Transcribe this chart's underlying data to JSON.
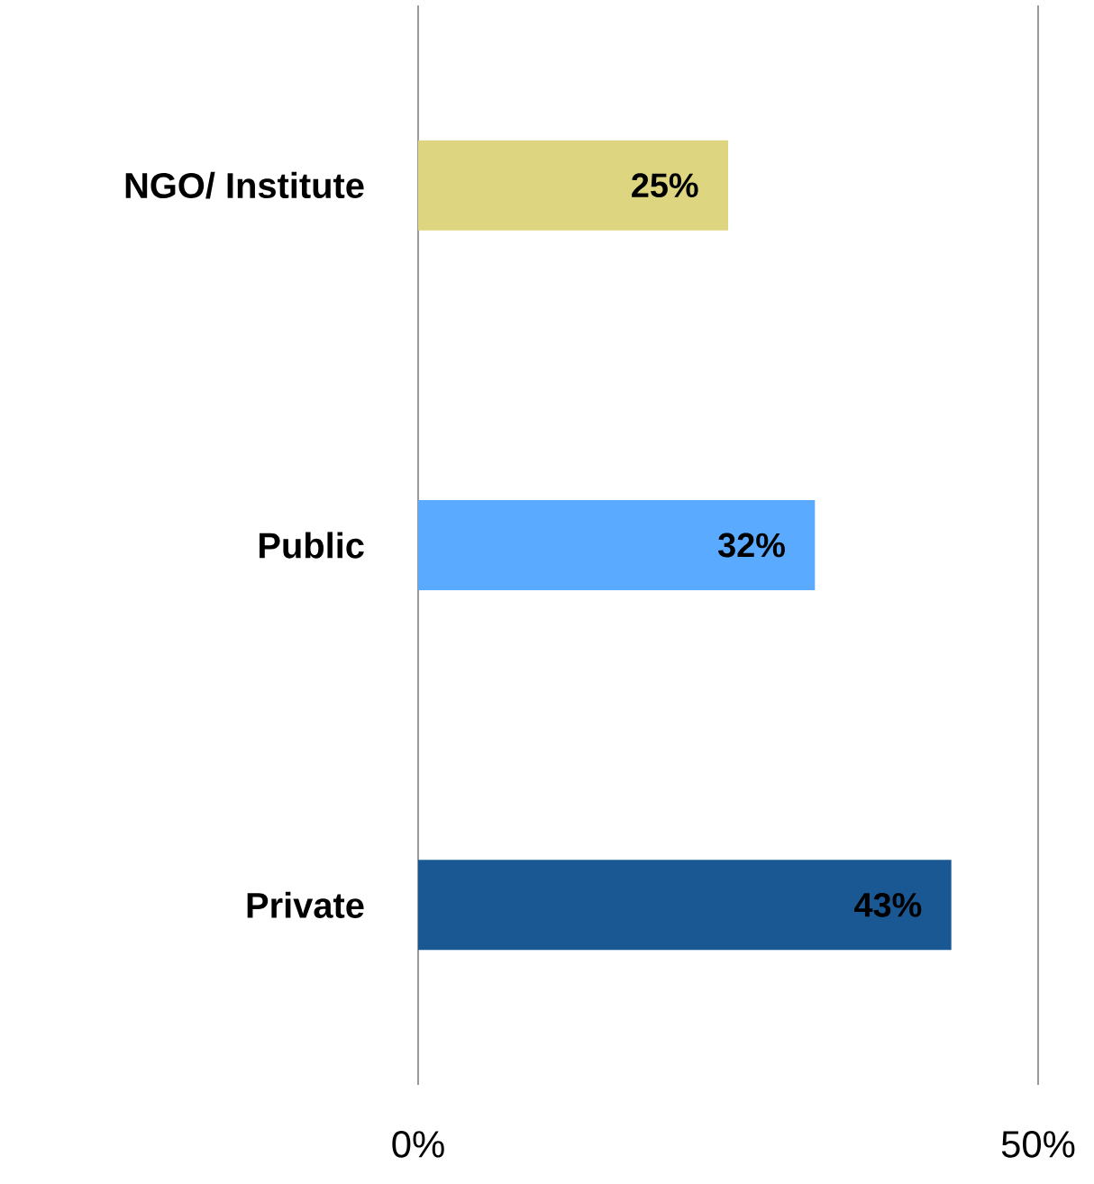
{
  "chart_data": {
    "type": "bar",
    "orientation": "horizontal",
    "categories": [
      "NGO/ Institute",
      "Public",
      "Private"
    ],
    "values": [
      25,
      32,
      43
    ],
    "colors": [
      "#ddd580",
      "#5aabff",
      "#1a5894"
    ],
    "value_labels": [
      "25%",
      "32%",
      "43%"
    ],
    "xlim": [
      0,
      50
    ],
    "xticks": [
      {
        "value": 0,
        "label": "0%"
      },
      {
        "value": 50,
        "label": "50%"
      }
    ]
  }
}
